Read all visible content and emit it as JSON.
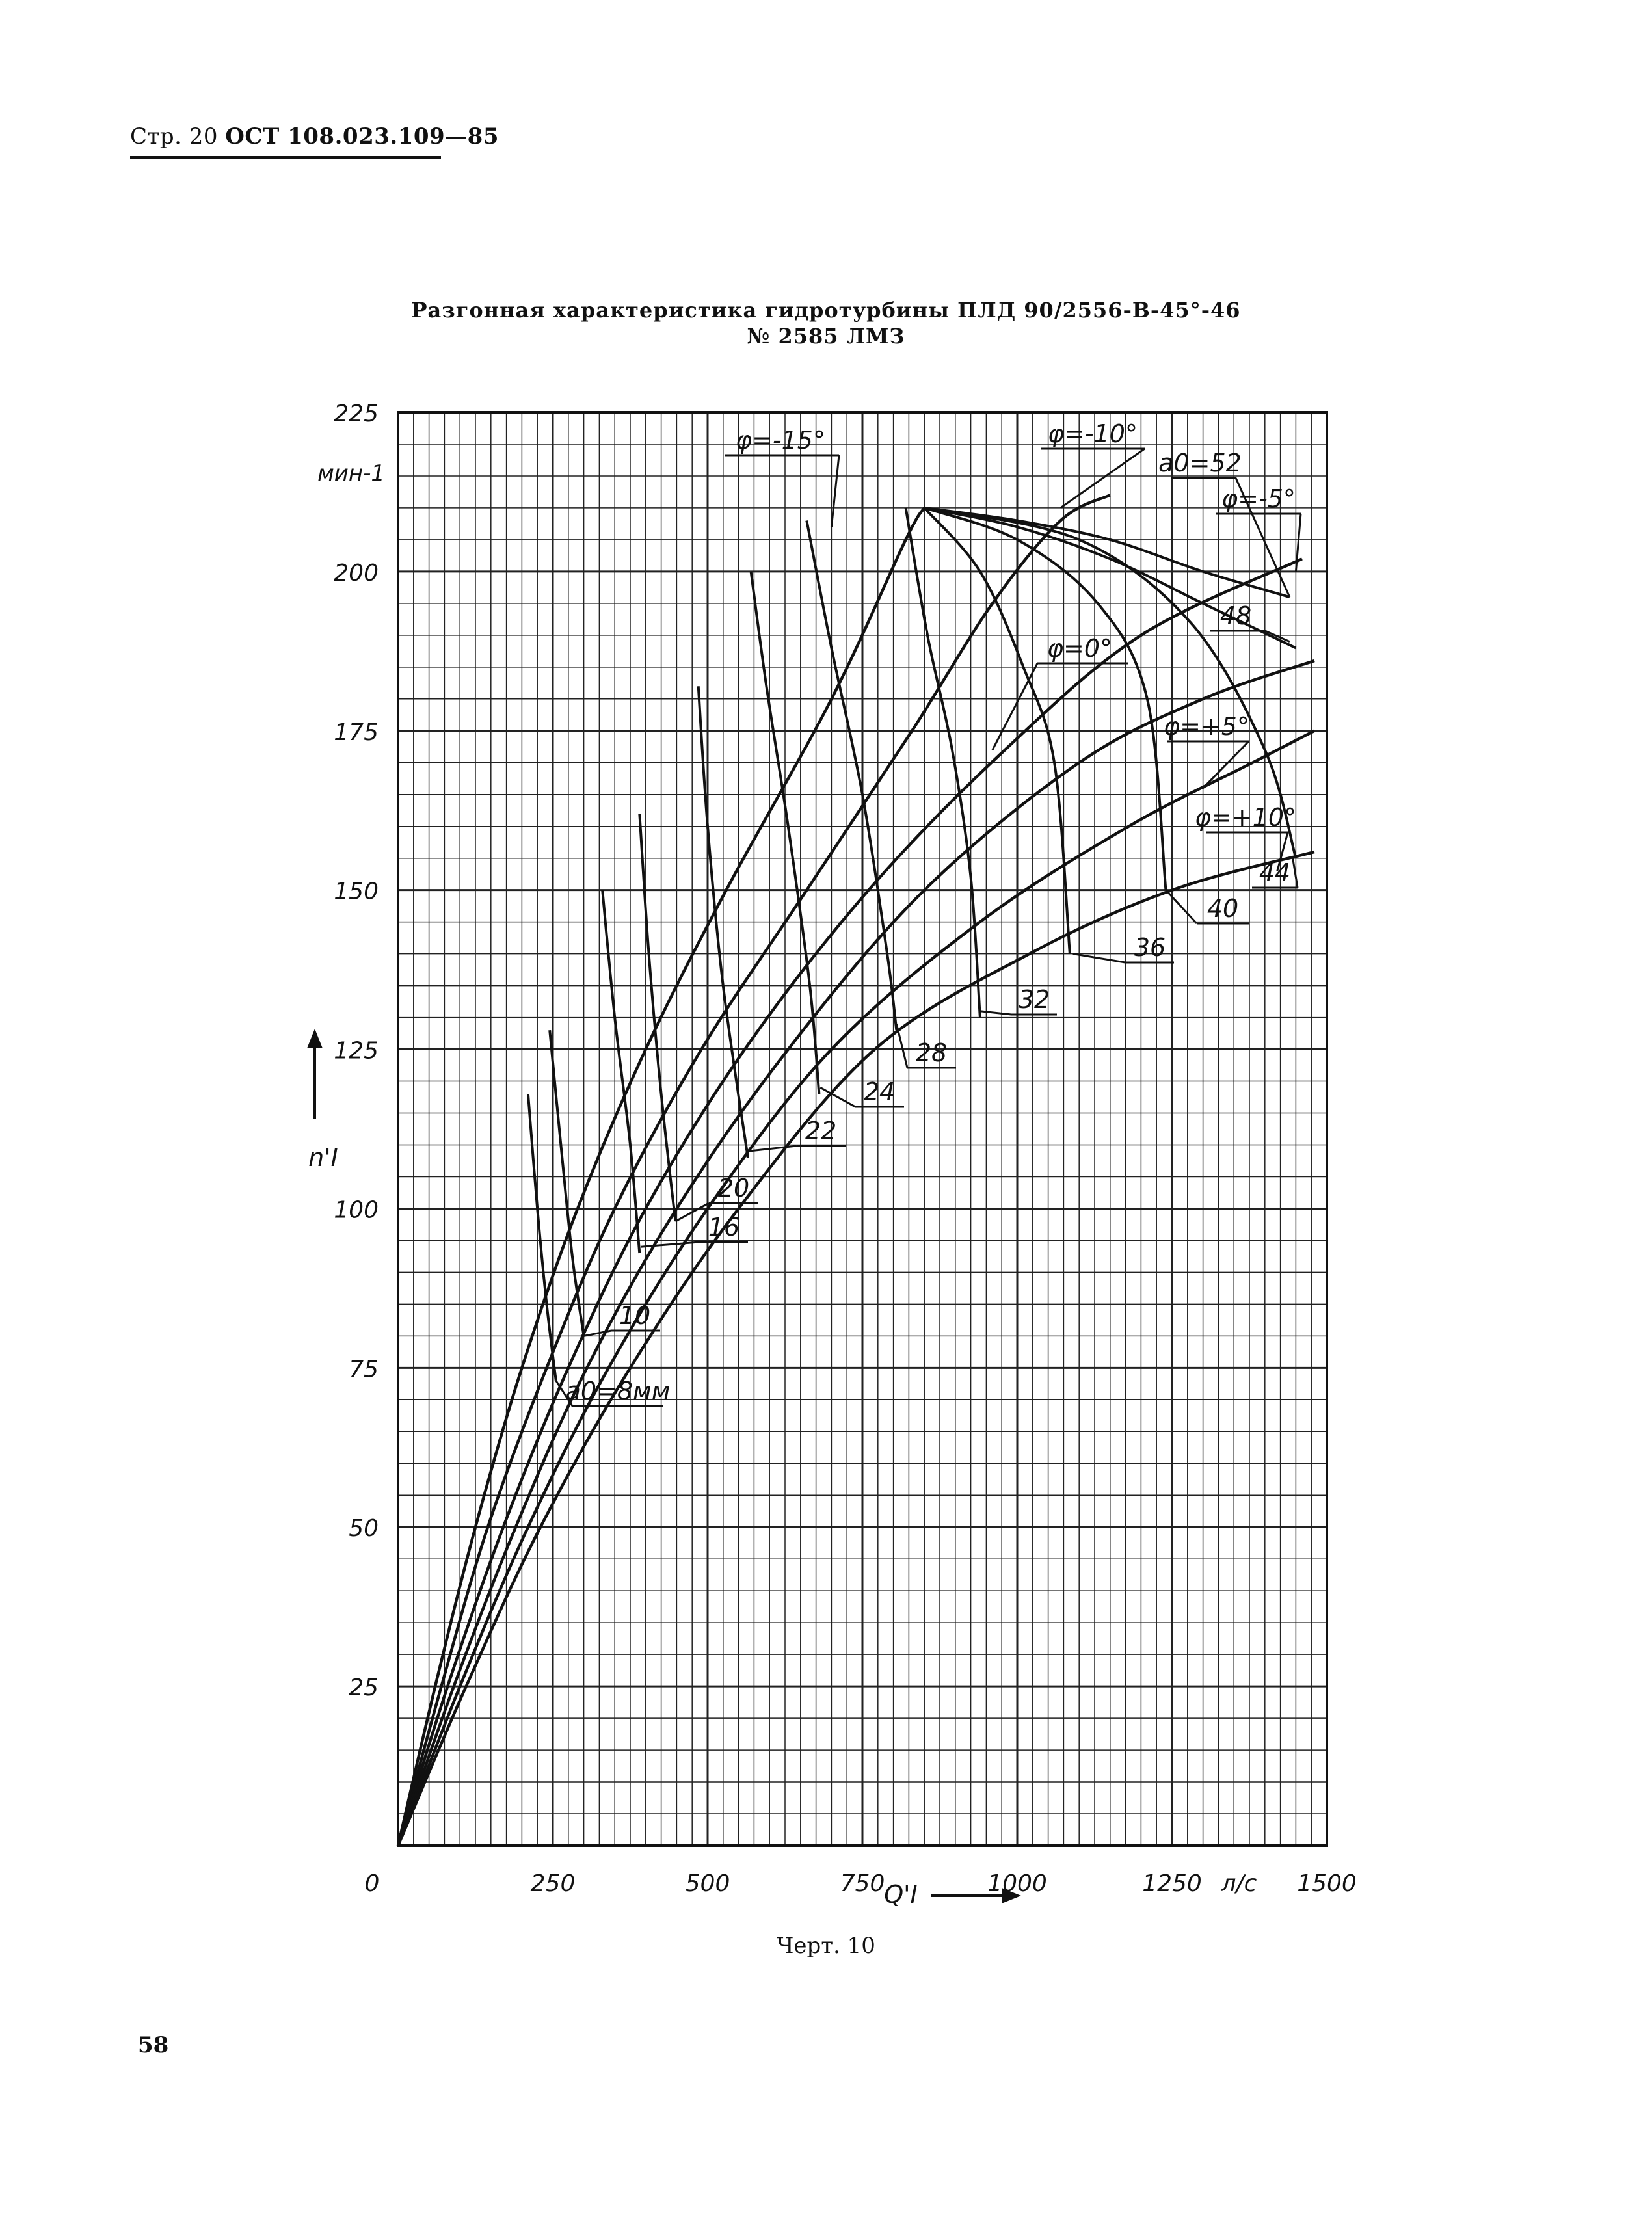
{
  "header": {
    "prefix": "Стр. 20",
    "code": "ОСТ 108.023.109—85"
  },
  "title_line1": "Разгонная характеристика гидротурбины ПЛД 90/2556-В-45°-46",
  "title_line2": "№ 2585 ЛМЗ",
  "caption": "Черт. 10",
  "page_number": "58",
  "chart_data": {
    "type": "line",
    "title": "Разгонная характеристика гидротурбины ПЛД 90/2556-В-45°-46 № 2585 ЛМЗ",
    "xlabel": "Q'I",
    "xunit": "л/с",
    "ylabel": "n'I",
    "yunit": "мин-1",
    "xlim": [
      0,
      1500
    ],
    "ylim": [
      0,
      225
    ],
    "x_ticks": [
      "0",
      "250",
      "500",
      "750",
      "1000",
      "1250",
      "1500"
    ],
    "y_ticks": [
      "25",
      "50",
      "75",
      "100",
      "125",
      "150",
      "175",
      "200",
      "225"
    ],
    "grid": true,
    "phi_curves": [
      {
        "label": "φ=-15°",
        "points": [
          [
            0,
            0
          ],
          [
            60,
            25
          ],
          [
            125,
            50
          ],
          [
            200,
            75
          ],
          [
            290,
            100
          ],
          [
            400,
            125
          ],
          [
            530,
            150
          ],
          [
            700,
            180
          ],
          [
            820,
            205
          ],
          [
            850,
            210
          ]
        ]
      },
      {
        "label": "φ=-10°",
        "points": [
          [
            0,
            0
          ],
          [
            70,
            25
          ],
          [
            145,
            50
          ],
          [
            240,
            75
          ],
          [
            350,
            100
          ],
          [
            490,
            125
          ],
          [
            660,
            150
          ],
          [
            830,
            175
          ],
          [
            960,
            195
          ],
          [
            1070,
            208
          ],
          [
            1150,
            212
          ]
        ]
      },
      {
        "label": "φ=-5°",
        "points": [
          [
            0,
            0
          ],
          [
            80,
            25
          ],
          [
            170,
            50
          ],
          [
            275,
            75
          ],
          [
            400,
            100
          ],
          [
            560,
            125
          ],
          [
            760,
            150
          ],
          [
            980,
            172
          ],
          [
            1200,
            190
          ],
          [
            1460,
            202
          ]
        ]
      },
      {
        "label": "φ=0°",
        "points": [
          [
            0,
            0
          ],
          [
            90,
            25
          ],
          [
            190,
            50
          ],
          [
            305,
            75
          ],
          [
            450,
            100
          ],
          [
            630,
            125
          ],
          [
            850,
            150
          ],
          [
            1100,
            170
          ],
          [
            1300,
            180
          ],
          [
            1480,
            186
          ]
        ]
      },
      {
        "label": "φ=+5°",
        "points": [
          [
            0,
            0
          ],
          [
            100,
            25
          ],
          [
            210,
            50
          ],
          [
            340,
            75
          ],
          [
            500,
            100
          ],
          [
            700,
            125
          ],
          [
            940,
            145
          ],
          [
            1180,
            160
          ],
          [
            1380,
            170
          ],
          [
            1480,
            175
          ]
        ]
      },
      {
        "label": "φ=+10°",
        "points": [
          [
            0,
            0
          ],
          [
            110,
            25
          ],
          [
            230,
            50
          ],
          [
            375,
            75
          ],
          [
            550,
            100
          ],
          [
            770,
            125
          ],
          [
            1020,
            140
          ],
          [
            1250,
            150
          ],
          [
            1480,
            156
          ]
        ]
      }
    ],
    "opening_curves": [
      {
        "label": "a0=8мм",
        "points": [
          [
            210,
            118
          ],
          [
            225,
            100
          ],
          [
            240,
            85
          ],
          [
            255,
            73
          ]
        ]
      },
      {
        "label": "10",
        "points": [
          [
            245,
            128
          ],
          [
            265,
            108
          ],
          [
            282,
            92
          ],
          [
            300,
            80
          ]
        ]
      },
      {
        "label": "16",
        "points": [
          [
            330,
            150
          ],
          [
            350,
            130
          ],
          [
            375,
            110
          ],
          [
            390,
            93
          ]
        ]
      },
      {
        "label": "20",
        "points": [
          [
            390,
            162
          ],
          [
            405,
            140
          ],
          [
            425,
            118
          ],
          [
            448,
            98
          ]
        ]
      },
      {
        "label": "22",
        "points": [
          [
            485,
            182
          ],
          [
            500,
            160
          ],
          [
            525,
            135
          ],
          [
            565,
            108
          ]
        ]
      },
      {
        "label": "24",
        "points": [
          [
            570,
            200
          ],
          [
            595,
            182
          ],
          [
            630,
            160
          ],
          [
            665,
            135
          ],
          [
            680,
            118
          ]
        ]
      },
      {
        "label": "28",
        "points": [
          [
            660,
            208
          ],
          [
            700,
            188
          ],
          [
            750,
            165
          ],
          [
            790,
            140
          ],
          [
            805,
            128
          ]
        ]
      },
      {
        "label": "32",
        "points": [
          [
            820,
            210
          ],
          [
            855,
            190
          ],
          [
            895,
            172
          ],
          [
            925,
            152
          ],
          [
            940,
            130
          ]
        ]
      },
      {
        "label": "36",
        "points": [
          [
            850,
            210
          ],
          [
            940,
            200
          ],
          [
            1010,
            185
          ],
          [
            1060,
            170
          ],
          [
            1085,
            140
          ]
        ]
      },
      {
        "label": "40",
        "points": [
          [
            850,
            210
          ],
          [
            1000,
            205
          ],
          [
            1130,
            195
          ],
          [
            1210,
            180
          ],
          [
            1240,
            150
          ]
        ]
      },
      {
        "label": "44",
        "points": [
          [
            850,
            210
          ],
          [
            1100,
            205
          ],
          [
            1280,
            192
          ],
          [
            1400,
            172
          ],
          [
            1450,
            155
          ]
        ]
      },
      {
        "label": "48",
        "points": [
          [
            850,
            210
          ],
          [
            1000,
            207
          ],
          [
            1150,
            202
          ],
          [
            1300,
            195
          ],
          [
            1450,
            188
          ]
        ]
      },
      {
        "label": "a0=52",
        "points": [
          [
            850,
            210
          ],
          [
            1000,
            208
          ],
          [
            1150,
            205
          ],
          [
            1300,
            200
          ],
          [
            1440,
            196
          ]
        ]
      }
    ]
  },
  "colors": {
    "ink": "#111111",
    "grid": "#222222",
    "paper": "#ffffff"
  }
}
